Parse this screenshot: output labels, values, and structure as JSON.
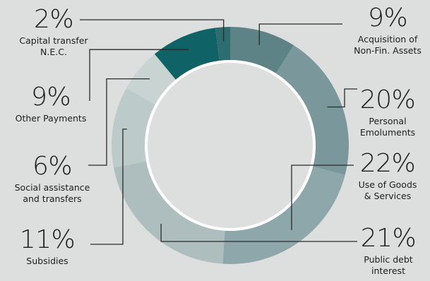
{
  "chart_data": {
    "type": "pie",
    "variant": "donut",
    "slices": [
      {
        "label_lines": [
          "Acquisition of",
          "Non-Fin. Assets"
        ],
        "pct_text": "9%",
        "value": 9,
        "color": "#5e8386"
      },
      {
        "label_lines": [
          "Personal",
          "Emoluments"
        ],
        "pct_text": "20%",
        "value": 20,
        "color": "#7a989b"
      },
      {
        "label_lines": [
          "Use of Goods",
          "& Services"
        ],
        "pct_text": "22%",
        "value": 22,
        "color": "#8ea7aa"
      },
      {
        "label_lines": [
          "Public debt",
          "interest"
        ],
        "pct_text": "21%",
        "value": 21,
        "color": "#aebdbd"
      },
      {
        "label_lines": [
          "Subsidies"
        ],
        "pct_text": "11%",
        "value": 11,
        "color": "#bccac9"
      },
      {
        "label_lines": [
          "Social assistance",
          "and transfers"
        ],
        "pct_text": "6%",
        "value": 6,
        "color": "#c9d3d2"
      },
      {
        "label_lines": [
          "Other Payments"
        ],
        "pct_text": "9%",
        "value": 9,
        "color": "#0f6266"
      },
      {
        "label_lines": [
          "Capital transfer",
          "N.E.C."
        ],
        "pct_text": "2%",
        "value": 2,
        "color": "#2d6d70"
      }
    ],
    "colors": {
      "background": "#dcdfde",
      "leader": "#2a2a2a",
      "inner_ring": "#ffffff"
    }
  }
}
